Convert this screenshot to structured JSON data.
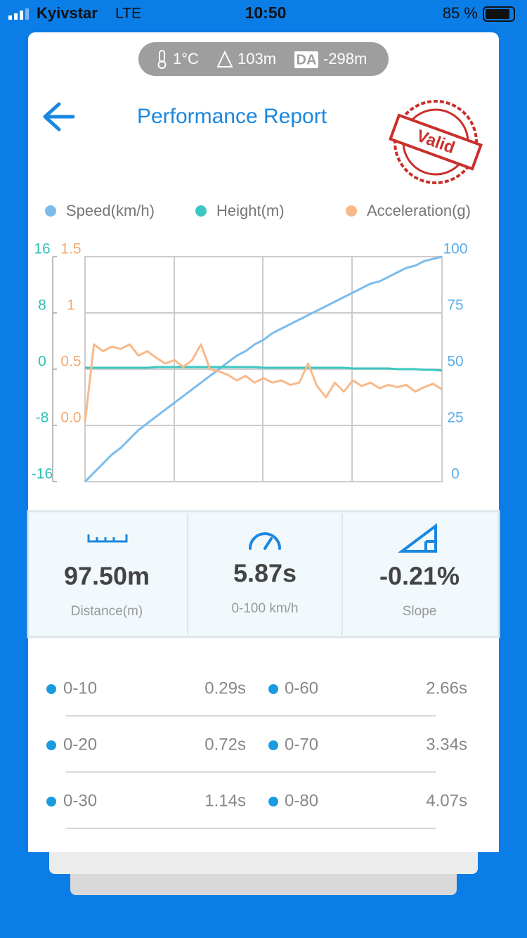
{
  "status_bar": {
    "carrier": "Kyivstar",
    "network": "LTE",
    "time": "10:50",
    "battery": "85 %"
  },
  "conditions": {
    "temperature": "1°C",
    "altitude": "103m",
    "da_badge": "DA",
    "density_altitude": "-298m"
  },
  "header": {
    "title": "Performance Report",
    "stamp": "Valid"
  },
  "chart_data": {
    "type": "line",
    "series": [
      {
        "name": "Speed(km/h)",
        "color": "#7cbcec",
        "axis": "y2",
        "values": [
          0,
          4,
          8,
          12,
          15,
          19,
          23,
          26,
          29,
          32,
          35,
          38,
          41,
          44,
          47,
          50,
          53,
          56,
          58,
          61,
          63,
          66,
          68,
          70,
          72,
          74,
          76,
          78,
          80,
          82,
          84,
          86,
          88,
          89,
          91,
          93,
          95,
          96,
          98,
          99,
          100
        ]
      },
      {
        "name": "Height(m)",
        "color": "#3cc7c0",
        "axis": "y",
        "values": [
          0.2,
          0.2,
          0.2,
          0.2,
          0.2,
          0.2,
          0.2,
          0.2,
          0.3,
          0.3,
          0.3,
          0.3,
          0.3,
          0.3,
          0.3,
          0.3,
          0.3,
          0.3,
          0.3,
          0.3,
          0.2,
          0.2,
          0.2,
          0.2,
          0.2,
          0.2,
          0.2,
          0.2,
          0.2,
          0.2,
          0.1,
          0.1,
          0.1,
          0.1,
          0.1,
          0.0,
          0.0,
          0.0,
          -0.1,
          -0.1,
          -0.2
        ]
      },
      {
        "name": "Acceleration(g)",
        "color": "#f8b98a",
        "axis": "y3",
        "values": [
          0.03,
          0.72,
          0.66,
          0.7,
          0.68,
          0.72,
          0.62,
          0.66,
          0.6,
          0.55,
          0.58,
          0.52,
          0.58,
          0.72,
          0.5,
          0.48,
          0.45,
          0.4,
          0.44,
          0.38,
          0.42,
          0.38,
          0.4,
          0.36,
          0.38,
          0.55,
          0.35,
          0.25,
          0.38,
          0.3,
          0.4,
          0.35,
          0.38,
          0.33,
          0.36,
          0.34,
          0.36,
          0.3,
          0.34,
          0.37,
          0.32
        ]
      }
    ],
    "ylim": [
      -16,
      16
    ],
    "yticks": [
      -16,
      -8,
      0,
      8,
      16
    ],
    "y2lim": [
      0,
      100
    ],
    "y2ticks": [
      0,
      25,
      50,
      75,
      100
    ],
    "y3lim": [
      -0.5,
      1.5
    ],
    "y3ticks": [
      {
        "value": 0,
        "label": "0.0"
      },
      0.5,
      1,
      1.5
    ],
    "grid": true,
    "legend": "top"
  },
  "stats": [
    {
      "value": "97.50m",
      "label": "Distance(m)"
    },
    {
      "value": "5.87s",
      "label": "0-100 km/h"
    },
    {
      "value": "-0.21%",
      "label": "Slope"
    }
  ],
  "splits": {
    "rows": [
      [
        "0-10",
        "0.29s",
        "0-60",
        "2.66s"
      ],
      [
        "0-20",
        "0.72s",
        "0-70",
        "3.34s"
      ],
      [
        "0-30",
        "1.14s",
        "0-80",
        "4.07s"
      ]
    ]
  }
}
